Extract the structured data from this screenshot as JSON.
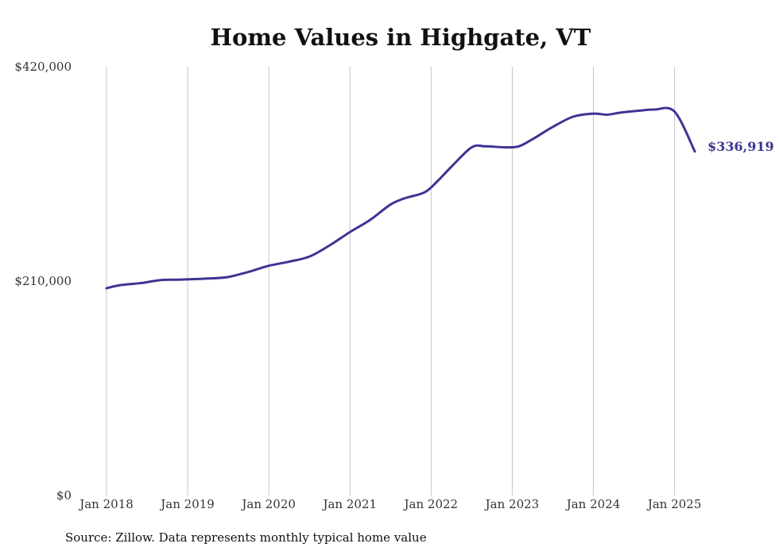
{
  "chart_data": {
    "type": "line",
    "title": "Home Values in Highgate, VT",
    "xlabel": "",
    "ylabel": "",
    "ylim": [
      0,
      420000
    ],
    "y_ticks": [
      {
        "value": 0,
        "label": "$0"
      },
      {
        "value": 210000,
        "label": "$210,000"
      },
      {
        "value": 420000,
        "label": "$420,000"
      }
    ],
    "x_ticks": [
      {
        "value": 2018,
        "label": "Jan 2018"
      },
      {
        "value": 2019,
        "label": "Jan 2019"
      },
      {
        "value": 2020,
        "label": "Jan 2020"
      },
      {
        "value": 2021,
        "label": "Jan 2021"
      },
      {
        "value": 2022,
        "label": "Jan 2022"
      },
      {
        "value": 2023,
        "label": "Jan 2023"
      },
      {
        "value": 2024,
        "label": "Jan 2024"
      },
      {
        "value": 2025,
        "label": "Jan 2025"
      }
    ],
    "xlim": [
      2018,
      2025.25
    ],
    "grid": "vertical",
    "legend": "none",
    "line_color": "#3d3593",
    "series": [
      {
        "x": [
          2018.0,
          2018.17,
          2018.42,
          2018.67,
          2018.92,
          2019.25,
          2019.5,
          2019.75,
          2020.0,
          2020.25,
          2020.5,
          2020.75,
          2021.0,
          2021.25,
          2021.5,
          2021.67,
          2021.92,
          2022.08,
          2022.25,
          2022.5,
          2022.67,
          2022.92,
          2023.08,
          2023.25,
          2023.5,
          2023.75,
          2024.0,
          2024.17,
          2024.33,
          2024.58,
          2024.75,
          2025.0,
          2025.25
        ],
        "values": [
          203000,
          206000,
          208000,
          211000,
          211500,
          212500,
          214000,
          219000,
          225000,
          229000,
          234000,
          245000,
          258000,
          270000,
          285000,
          291000,
          297000,
          308000,
          322000,
          341000,
          342000,
          341000,
          342000,
          349000,
          361000,
          371000,
          374000,
          373000,
          375000,
          377000,
          378000,
          376000,
          336919
        ]
      }
    ],
    "end_label": "$336,919",
    "source": "Source: Zillow. Data represents monthly typical home value"
  }
}
